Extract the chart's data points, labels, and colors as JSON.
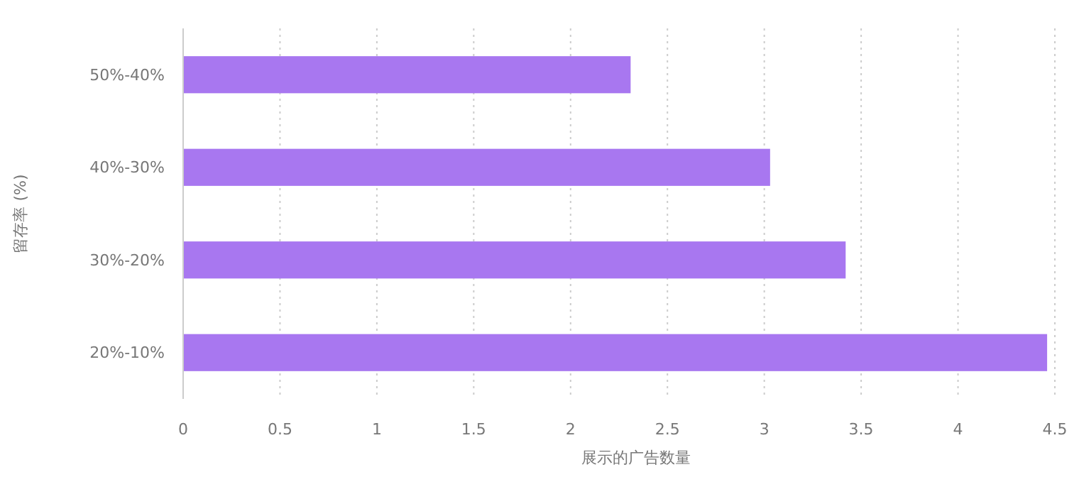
{
  "chart_data": {
    "type": "bar",
    "orientation": "horizontal",
    "xlabel": "展示的广告数量",
    "ylabel": "留存率 (%)",
    "categories": [
      "50%-40%",
      "40%-30%",
      "30%-20%",
      "20%-10%"
    ],
    "values": [
      2.31,
      3.03,
      3.42,
      4.46
    ],
    "color": "#a877f0",
    "xlim": [
      0,
      4.5
    ],
    "xticks": [
      0,
      0.5,
      1,
      1.5,
      2,
      2.5,
      3,
      3.5,
      4,
      4.5
    ],
    "grid": "x",
    "line_style": "dotted"
  }
}
